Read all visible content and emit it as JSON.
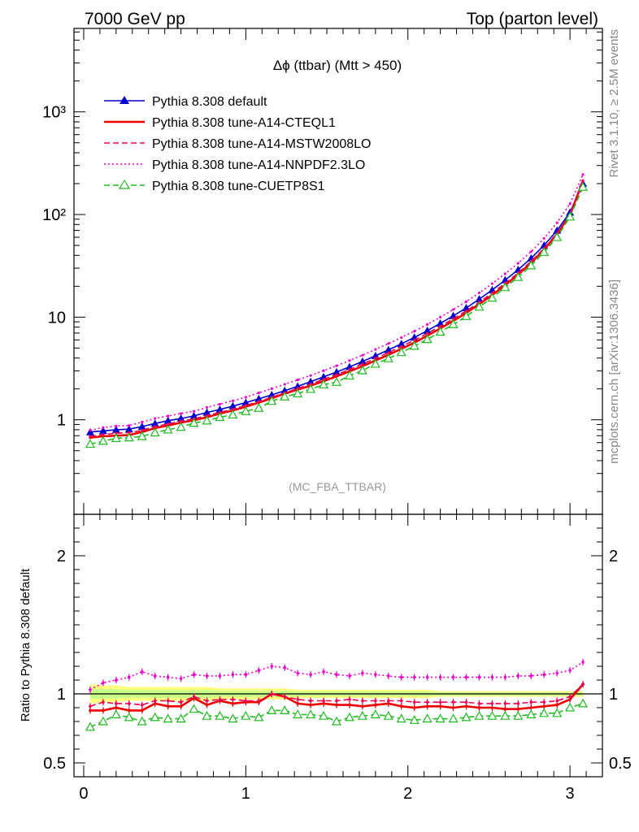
{
  "header": {
    "left": "7000 GeV pp",
    "right": "Top (parton level)"
  },
  "side": {
    "rivet": "Rivet 3.1.10, ≥ 2.5M events",
    "mcplots": "mcplots.cern.ch [arXiv:1306.3436]"
  },
  "chart_data": [
    {
      "type": "line",
      "title": "Δϕ (ttbar) (Mtt > 450)",
      "watermark": "(MC_FBA_TTBAR)",
      "xlabel": "",
      "ylabel": "",
      "xlim": [
        -0.06,
        3.2
      ],
      "ylim": [
        0.12,
        6500
      ],
      "yscale": "log",
      "yticks": [
        {
          "v": 1,
          "label": "1"
        },
        {
          "v": 10,
          "label": "10"
        },
        {
          "v": 100,
          "label": "10²"
        },
        {
          "v": 1000,
          "label": "10³"
        }
      ],
      "x": [
        0.04,
        0.12,
        0.2,
        0.28,
        0.36,
        0.44,
        0.52,
        0.6,
        0.68,
        0.76,
        0.84,
        0.92,
        1.0,
        1.08,
        1.16,
        1.24,
        1.32,
        1.4,
        1.48,
        1.56,
        1.64,
        1.72,
        1.8,
        1.88,
        1.96,
        2.04,
        2.12,
        2.2,
        2.28,
        2.36,
        2.44,
        2.52,
        2.6,
        2.68,
        2.76,
        2.84,
        2.92,
        3.0,
        3.08
      ],
      "series": [
        {
          "name": "Pythia 8.308 default",
          "color": "#0000cc",
          "style": "solid",
          "marker": "triangle-filled",
          "values": [
            0.76,
            0.78,
            0.8,
            0.81,
            0.86,
            0.92,
            0.98,
            1.03,
            1.09,
            1.18,
            1.26,
            1.36,
            1.47,
            1.6,
            1.75,
            1.92,
            2.12,
            2.35,
            2.62,
            2.92,
            3.28,
            3.7,
            4.2,
            4.8,
            5.5,
            6.35,
            7.4,
            8.7,
            10.3,
            12.3,
            15.0,
            18.4,
            23.0,
            29.0,
            37.5,
            50.0,
            70.0,
            105.0,
            200.0
          ]
        },
        {
          "name": "Pythia 8.308 tune-A14-CTEQL1",
          "color": "#ee0000",
          "style": "solid",
          "marker": "none",
          "values": [
            0.67,
            0.69,
            0.7,
            0.71,
            0.76,
            0.83,
            0.88,
            0.94,
            0.99,
            1.06,
            1.15,
            1.23,
            1.34,
            1.47,
            1.62,
            1.8,
            1.97,
            2.15,
            2.38,
            2.65,
            2.97,
            3.33,
            3.78,
            4.3,
            4.92,
            5.65,
            6.6,
            7.75,
            9.2,
            11.0,
            13.4,
            16.4,
            20.5,
            26.0,
            33.8,
            45.5,
            64.5,
            99.0,
            214.0
          ]
        },
        {
          "name": "Pythia 8.308 tune-A14-MSTW2008LO",
          "color": "#ee0055",
          "style": "dashed",
          "marker": "none",
          "values": [
            0.69,
            0.72,
            0.74,
            0.75,
            0.79,
            0.86,
            0.91,
            0.97,
            1.02,
            1.1,
            1.18,
            1.27,
            1.38,
            1.51,
            1.66,
            1.83,
            2.02,
            2.23,
            2.48,
            2.76,
            3.1,
            3.5,
            3.97,
            4.52,
            5.18,
            5.97,
            6.95,
            8.15,
            9.65,
            11.5,
            14.0,
            17.2,
            21.4,
            27.0,
            35.0,
            46.8,
            66.0,
            100.0,
            213.0
          ]
        },
        {
          "name": "Pythia 8.308 tune-A14-NNPDF2.3LO",
          "color": "#ee00cc",
          "style": "dotted",
          "marker": "none",
          "values": [
            0.79,
            0.84,
            0.87,
            0.88,
            0.95,
            1.03,
            1.09,
            1.15,
            1.21,
            1.32,
            1.42,
            1.53,
            1.66,
            1.83,
            2.01,
            2.22,
            2.45,
            2.7,
            3.01,
            3.36,
            3.78,
            4.26,
            4.85,
            5.53,
            6.33,
            7.3,
            8.5,
            10.0,
            11.85,
            14.15,
            17.25,
            21.2,
            26.5,
            33.5,
            43.5,
            58.5,
            83.0,
            127.0,
            245.0
          ]
        },
        {
          "name": "Pythia 8.308 tune-CUETP8S1",
          "color": "#22bb22",
          "style": "dashed",
          "marker": "triangle-open",
          "values": [
            0.58,
            0.62,
            0.66,
            0.67,
            0.69,
            0.75,
            0.8,
            0.85,
            0.93,
            0.98,
            1.06,
            1.12,
            1.21,
            1.3,
            1.52,
            1.68,
            1.8,
            1.99,
            2.2,
            2.33,
            2.69,
            3.02,
            3.5,
            3.96,
            4.54,
            5.23,
            6.08,
            7.18,
            8.5,
            10.2,
            12.6,
            15.4,
            19.5,
            24.5,
            31.8,
            43.0,
            60.0,
            95.0,
            185.0
          ]
        }
      ]
    },
    {
      "type": "line",
      "ylabel": "Ratio to Pythia 8.308 default",
      "xlim": [
        -0.06,
        3.2
      ],
      "ylim": [
        0.4,
        2.3
      ],
      "xticks": [
        {
          "v": 0,
          "label": "0"
        },
        {
          "v": 1,
          "label": "1"
        },
        {
          "v": 2,
          "label": "2"
        },
        {
          "v": 3,
          "label": "3"
        }
      ],
      "yticks": [
        {
          "v": 0.5,
          "label": "0.5"
        },
        {
          "v": 1,
          "label": "1"
        },
        {
          "v": 2,
          "label": "2"
        }
      ],
      "band": {
        "color": "#ffff66",
        "inner_color": "#bbff88",
        "half_width": [
          0.07,
          0.06,
          0.06,
          0.05,
          0.05,
          0.05,
          0.05,
          0.05,
          0.05,
          0.05,
          0.04,
          0.04,
          0.04,
          0.04,
          0.04,
          0.04,
          0.03,
          0.03,
          0.03,
          0.03,
          0.03,
          0.03,
          0.03,
          0.03,
          0.03,
          0.03,
          0.03,
          0.02,
          0.02,
          0.02,
          0.02,
          0.02,
          0.02,
          0.02,
          0.02,
          0.02,
          0.02,
          0.02,
          0.02
        ]
      },
      "reference_line": 1,
      "x": [
        0.04,
        0.12,
        0.2,
        0.28,
        0.36,
        0.44,
        0.52,
        0.6,
        0.68,
        0.76,
        0.84,
        0.92,
        1.0,
        1.08,
        1.16,
        1.24,
        1.32,
        1.4,
        1.48,
        1.56,
        1.64,
        1.72,
        1.8,
        1.88,
        1.96,
        2.04,
        2.12,
        2.2,
        2.28,
        2.36,
        2.44,
        2.52,
        2.6,
        2.68,
        2.76,
        2.84,
        2.92,
        3.0,
        3.08
      ],
      "series": [
        {
          "name": "Pythia 8.308 tune-A14-CTEQL1",
          "color": "#ee0000",
          "style": "solid",
          "values": [
            0.88,
            0.88,
            0.9,
            0.88,
            0.88,
            0.93,
            0.91,
            0.91,
            0.97,
            0.92,
            0.95,
            0.93,
            0.94,
            0.94,
            1.0,
            0.98,
            0.93,
            0.92,
            0.93,
            0.92,
            0.92,
            0.91,
            0.92,
            0.93,
            0.91,
            0.9,
            0.91,
            0.91,
            0.9,
            0.91,
            0.9,
            0.9,
            0.89,
            0.89,
            0.9,
            0.91,
            0.92,
            0.96,
            1.07
          ]
        },
        {
          "name": "Pythia 8.308 tune-A14-MSTW2008LO",
          "color": "#ee0055",
          "style": "dashed",
          "values": [
            0.91,
            0.94,
            0.93,
            0.93,
            0.92,
            0.95,
            0.95,
            0.94,
            0.98,
            0.95,
            0.96,
            0.96,
            0.95,
            0.95,
            1.0,
            0.98,
            0.96,
            0.95,
            0.95,
            0.95,
            0.96,
            0.95,
            0.95,
            0.95,
            0.95,
            0.94,
            0.94,
            0.94,
            0.94,
            0.94,
            0.93,
            0.93,
            0.93,
            0.93,
            0.94,
            0.94,
            0.95,
            0.98,
            1.07
          ]
        },
        {
          "name": "Pythia 8.308 tune-A14-NNPDF2.3LO",
          "color": "#ee00cc",
          "style": "dotted",
          "values": [
            1.03,
            1.08,
            1.1,
            1.12,
            1.16,
            1.13,
            1.12,
            1.11,
            1.14,
            1.13,
            1.13,
            1.14,
            1.14,
            1.17,
            1.2,
            1.19,
            1.15,
            1.14,
            1.16,
            1.14,
            1.13,
            1.15,
            1.14,
            1.13,
            1.12,
            1.12,
            1.12,
            1.12,
            1.12,
            1.12,
            1.12,
            1.12,
            1.12,
            1.13,
            1.13,
            1.14,
            1.15,
            1.17,
            1.23
          ]
        },
        {
          "name": "Pythia 8.308 tune-CUETP8S1",
          "color": "#22bb22",
          "style": "dashed",
          "values": [
            0.76,
            0.8,
            0.85,
            0.83,
            0.8,
            0.83,
            0.82,
            0.82,
            0.89,
            0.84,
            0.84,
            0.82,
            0.84,
            0.83,
            0.88,
            0.88,
            0.85,
            0.85,
            0.84,
            0.8,
            0.83,
            0.84,
            0.85,
            0.84,
            0.82,
            0.81,
            0.82,
            0.82,
            0.82,
            0.83,
            0.84,
            0.84,
            0.84,
            0.84,
            0.85,
            0.86,
            0.86,
            0.9,
            0.93
          ]
        }
      ]
    }
  ]
}
